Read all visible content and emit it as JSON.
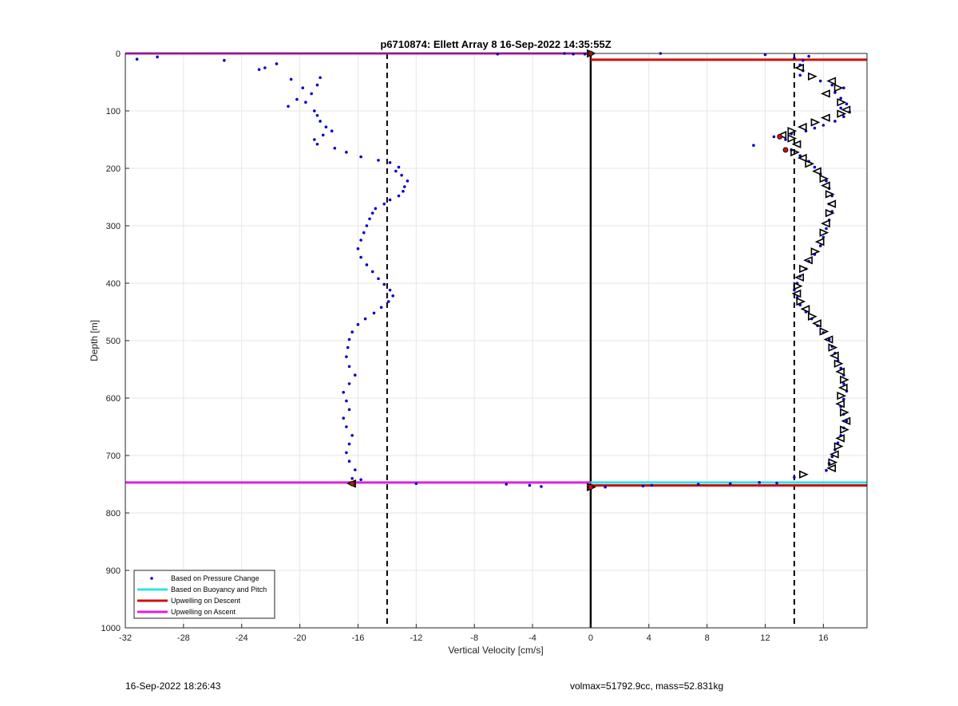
{
  "chart_data": {
    "type": "scatter",
    "title": "p6710874: Ellett Array 8 16-Sep-2022 14:35:55Z",
    "xlabel": "Vertical Velocity [cm/s]",
    "ylabel": "Depth [m]",
    "xlim": [
      -32,
      19
    ],
    "ylim": [
      0,
      1000
    ],
    "y_reversed": true,
    "grid": true,
    "xticks": [
      "-32",
      "-28",
      "-24",
      "-20",
      "-16",
      "-12",
      "-8",
      "-4",
      "0",
      "4",
      "8",
      "12",
      "16"
    ],
    "xtick_values": [
      -32,
      -28,
      -24,
      -20,
      -16,
      -12,
      -8,
      -4,
      0,
      4,
      8,
      12,
      16
    ],
    "yticks": [
      "0",
      "100",
      "200",
      "300",
      "400",
      "500",
      "600",
      "700",
      "800",
      "900",
      "1000"
    ],
    "ytick_values": [
      0,
      100,
      200,
      300,
      400,
      500,
      600,
      700,
      800,
      900,
      1000
    ],
    "legend_position": "bottom-left",
    "legend": [
      {
        "label": "Based on Pressure Change",
        "color": "#0000cc",
        "style": "dot"
      },
      {
        "label": "Based on Buoyancy and Pitch",
        "color": "#33e0e6",
        "style": "line"
      },
      {
        "label": "Upwelling on Descent",
        "color": "#cc1111",
        "style": "line"
      },
      {
        "label": "Upwelling on Ascent",
        "color": "#dd22dd",
        "style": "line"
      }
    ],
    "reference_lines": {
      "zero_line_x": 0,
      "dashed_x": [
        -14,
        14
      ]
    },
    "horizontal_lines": [
      {
        "series": "Upwelling on Ascent",
        "x": [
          -32,
          0
        ],
        "depth": 0,
        "color": "#dd22dd"
      },
      {
        "series": "Upwelling on Descent",
        "x": [
          0,
          19
        ],
        "depth": 11,
        "color": "#cc1111"
      },
      {
        "series": "Based on Buoyancy and Pitch",
        "x": [
          0,
          19
        ],
        "depth": 747,
        "color": "#33e0e6"
      },
      {
        "series": "Upwelling on Descent",
        "x": [
          0,
          19
        ],
        "depth": 752,
        "color": "#cc1111"
      },
      {
        "series": "Upwelling on Ascent",
        "x": [
          -32,
          0
        ],
        "depth": 747,
        "color": "#dd22dd"
      }
    ],
    "pressure_ascent_profile": [
      [
        -31.2,
        10
      ],
      [
        -29.8,
        6
      ],
      [
        -25.2,
        12
      ],
      [
        -22.8,
        28
      ],
      [
        -22.4,
        25
      ],
      [
        -21.6,
        18
      ],
      [
        -20.6,
        45
      ],
      [
        -19.8,
        60
      ],
      [
        -19.2,
        70
      ],
      [
        -18.8,
        55
      ],
      [
        -18.6,
        42
      ],
      [
        -20.2,
        80
      ],
      [
        -20.8,
        92
      ],
      [
        -19.6,
        85
      ],
      [
        -19.0,
        100
      ],
      [
        -18.8,
        108
      ],
      [
        -18.6,
        118
      ],
      [
        -18.2,
        128
      ],
      [
        -17.8,
        135
      ],
      [
        -18.4,
        142
      ],
      [
        -19.0,
        150
      ],
      [
        -18.8,
        158
      ],
      [
        -17.6,
        165
      ],
      [
        -16.8,
        172
      ],
      [
        -15.8,
        180
      ],
      [
        -14.6,
        186
      ],
      [
        -13.8,
        190
      ],
      [
        -13.2,
        198
      ],
      [
        -13.4,
        205
      ],
      [
        -13.0,
        212
      ],
      [
        -12.6,
        222
      ],
      [
        -12.8,
        232
      ],
      [
        -12.9,
        240
      ],
      [
        -13.2,
        248
      ],
      [
        -13.8,
        255
      ],
      [
        -14.2,
        262
      ],
      [
        -14.8,
        270
      ],
      [
        -15.0,
        278
      ],
      [
        -15.2,
        288
      ],
      [
        -15.4,
        300
      ],
      [
        -15.6,
        312
      ],
      [
        -15.8,
        325
      ],
      [
        -16.0,
        340
      ],
      [
        -15.8,
        355
      ],
      [
        -15.4,
        368
      ],
      [
        -15.0,
        380
      ],
      [
        -14.6,
        392
      ],
      [
        -14.2,
        402
      ],
      [
        -13.8,
        412
      ],
      [
        -13.6,
        422
      ],
      [
        -13.9,
        432
      ],
      [
        -14.4,
        442
      ],
      [
        -14.9,
        452
      ],
      [
        -15.5,
        462
      ],
      [
        -16.0,
        472
      ],
      [
        -16.4,
        485
      ],
      [
        -16.6,
        498
      ],
      [
        -16.7,
        512
      ],
      [
        -16.8,
        528
      ],
      [
        -16.6,
        545
      ],
      [
        -16.2,
        560
      ],
      [
        -16.6,
        575
      ],
      [
        -17.0,
        590
      ],
      [
        -16.8,
        605
      ],
      [
        -16.6,
        620
      ],
      [
        -17.0,
        635
      ],
      [
        -16.8,
        650
      ],
      [
        -16.4,
        665
      ],
      [
        -16.6,
        680
      ],
      [
        -16.8,
        695
      ],
      [
        -16.6,
        710
      ],
      [
        -16.2,
        725
      ],
      [
        -16.4,
        740
      ],
      [
        -16.6,
        748
      ],
      [
        -15.8,
        742
      ],
      [
        -12.0,
        749
      ],
      [
        -5.8,
        750
      ],
      [
        -4.2,
        752
      ],
      [
        -3.4,
        754
      ],
      [
        -1.8,
        0
      ],
      [
        -1.2,
        1
      ],
      [
        -0.4,
        1
      ],
      [
        -6.4,
        1
      ]
    ],
    "pressure_descent_profile": [
      [
        12.0,
        2
      ],
      [
        14.0,
        8
      ],
      [
        14.6,
        12
      ],
      [
        15.0,
        5
      ],
      [
        14.4,
        20
      ],
      [
        14.6,
        30
      ],
      [
        14.4,
        38
      ],
      [
        15.8,
        48
      ],
      [
        16.6,
        55
      ],
      [
        17.4,
        60
      ],
      [
        16.8,
        68
      ],
      [
        17.2,
        78
      ],
      [
        17.6,
        88
      ],
      [
        17.2,
        95
      ],
      [
        17.8,
        102
      ],
      [
        17.4,
        110
      ],
      [
        16.8,
        118
      ],
      [
        16.0,
        125
      ],
      [
        15.4,
        130
      ],
      [
        14.8,
        135
      ],
      [
        13.8,
        140
      ],
      [
        12.6,
        145
      ],
      [
        11.2,
        160
      ],
      [
        13.4,
        150
      ],
      [
        13.8,
        168
      ],
      [
        14.4,
        178
      ],
      [
        15.0,
        188
      ],
      [
        15.4,
        198
      ],
      [
        15.8,
        210
      ],
      [
        16.2,
        222
      ],
      [
        16.4,
        235
      ],
      [
        16.6,
        248
      ],
      [
        16.4,
        262
      ],
      [
        16.6,
        275
      ],
      [
        16.4,
        290
      ],
      [
        16.2,
        305
      ],
      [
        16.0,
        320
      ],
      [
        15.8,
        335
      ],
      [
        15.4,
        350
      ],
      [
        15.0,
        362
      ],
      [
        14.8,
        375
      ],
      [
        14.4,
        388
      ],
      [
        14.2,
        400
      ],
      [
        14.0,
        412
      ],
      [
        14.2,
        425
      ],
      [
        14.4,
        438
      ],
      [
        14.8,
        450
      ],
      [
        15.2,
        462
      ],
      [
        15.6,
        474
      ],
      [
        16.0,
        486
      ],
      [
        16.4,
        498
      ],
      [
        16.6,
        510
      ],
      [
        16.8,
        522
      ],
      [
        17.0,
        535
      ],
      [
        17.2,
        548
      ],
      [
        17.4,
        560
      ],
      [
        17.4,
        575
      ],
      [
        17.6,
        588
      ],
      [
        17.4,
        602
      ],
      [
        17.2,
        615
      ],
      [
        17.4,
        628
      ],
      [
        17.6,
        640
      ],
      [
        17.4,
        652
      ],
      [
        17.2,
        665
      ],
      [
        17.0,
        678
      ],
      [
        16.8,
        690
      ],
      [
        16.6,
        702
      ],
      [
        16.4,
        714
      ],
      [
        16.2,
        726
      ],
      [
        14.0,
        738
      ],
      [
        12.8,
        748
      ],
      [
        11.6,
        747
      ],
      [
        9.6,
        749
      ],
      [
        7.4,
        750
      ],
      [
        4.2,
        752
      ],
      [
        3.6,
        753
      ],
      [
        1.0,
        755
      ],
      [
        4.8,
        0
      ]
    ],
    "buoyancy_pitch_markers": [
      [
        0,
        0
      ],
      [
        14.4,
        25
      ],
      [
        15.2,
        40
      ],
      [
        16.6,
        48
      ],
      [
        17.0,
        60
      ],
      [
        16.2,
        70
      ],
      [
        17.2,
        85
      ],
      [
        17.6,
        98
      ],
      [
        17.2,
        105
      ],
      [
        16.2,
        112
      ],
      [
        15.4,
        120
      ],
      [
        14.6,
        128
      ],
      [
        13.8,
        135
      ],
      [
        13.2,
        142
      ],
      [
        13.8,
        148
      ],
      [
        14.2,
        158
      ],
      [
        14.0,
        172
      ],
      [
        14.6,
        182
      ],
      [
        15.0,
        192
      ],
      [
        15.6,
        205
      ],
      [
        16.0,
        218
      ],
      [
        16.2,
        230
      ],
      [
        16.4,
        245
      ],
      [
        16.6,
        262
      ],
      [
        16.4,
        278
      ],
      [
        16.2,
        296
      ],
      [
        16.0,
        312
      ],
      [
        15.8,
        328
      ],
      [
        15.4,
        345
      ],
      [
        15.0,
        360
      ],
      [
        14.6,
        375
      ],
      [
        14.4,
        390
      ],
      [
        14.2,
        405
      ],
      [
        14.2,
        418
      ],
      [
        14.4,
        432
      ],
      [
        14.8,
        445
      ],
      [
        15.2,
        458
      ],
      [
        15.6,
        470
      ],
      [
        16.0,
        484
      ],
      [
        16.4,
        498
      ],
      [
        16.6,
        512
      ],
      [
        16.8,
        526
      ],
      [
        17.0,
        540
      ],
      [
        17.2,
        554
      ],
      [
        17.4,
        568
      ],
      [
        17.4,
        582
      ],
      [
        17.2,
        596
      ],
      [
        17.2,
        610
      ],
      [
        17.4,
        625
      ],
      [
        17.6,
        640
      ],
      [
        17.4,
        655
      ],
      [
        17.2,
        670
      ],
      [
        17.0,
        684
      ],
      [
        16.8,
        698
      ],
      [
        16.6,
        712
      ],
      [
        16.6,
        722
      ],
      [
        14.6,
        733
      ],
      [
        -16.4,
        749
      ],
      [
        0,
        755
      ]
    ]
  },
  "footer": {
    "left_text": "16-Sep-2022 18:26:43",
    "right_text": "volmax=51792.9cc, mass=52.831kg"
  }
}
